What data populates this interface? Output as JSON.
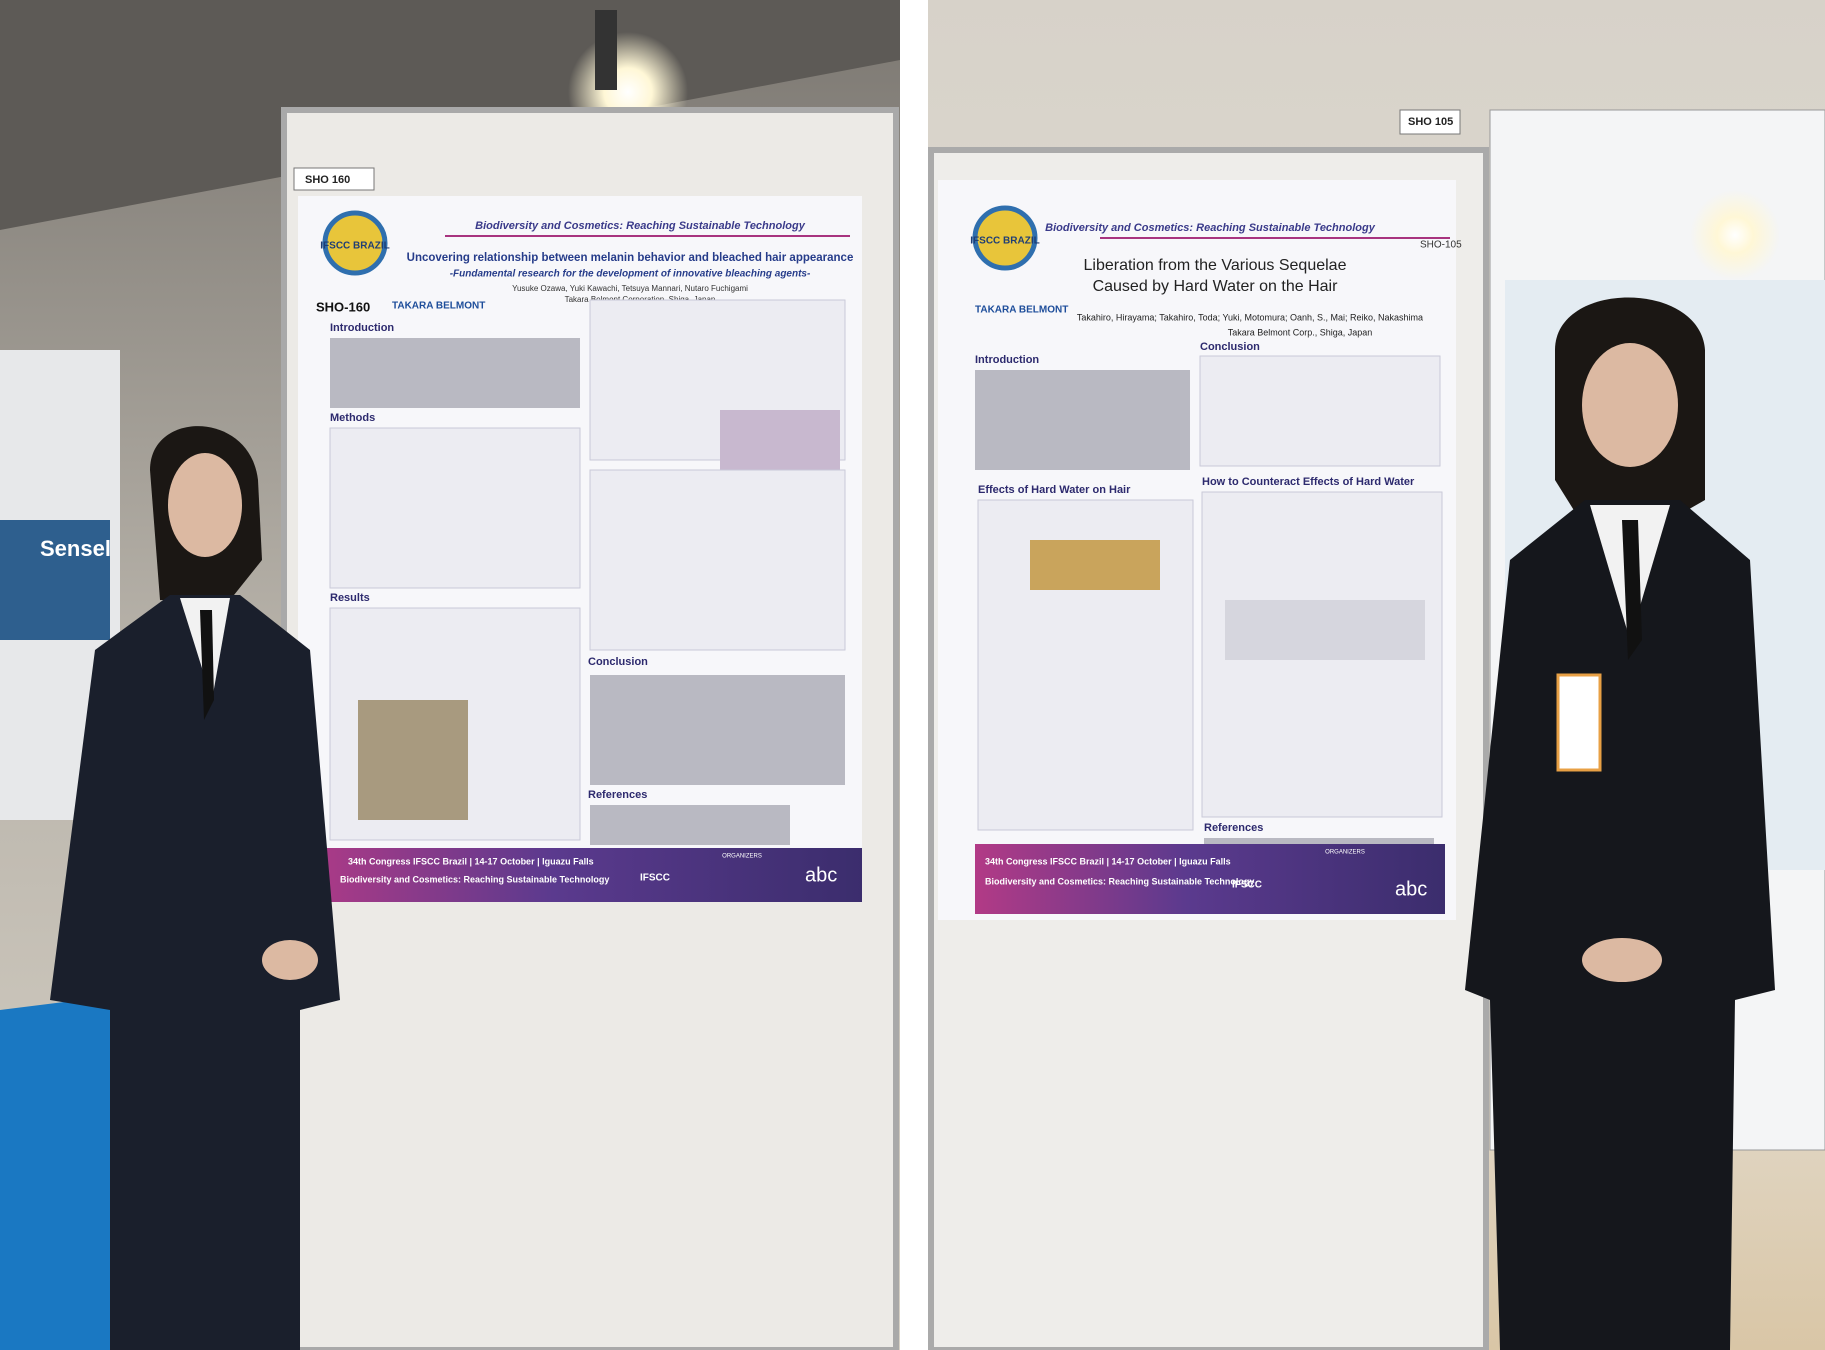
{
  "left_photo": {
    "booth": "SHO 160",
    "poster": {
      "logo": "IFSCC BRAZIL",
      "header": "Biodiversity and Cosmetics: Reaching Sustainable Technology",
      "title": "Uncovering relationship between melanin behavior and bleached hair appearance",
      "subtitle": "-Fundamental research for the development of innovative bleaching agents-",
      "authors": "Yusuke Ozawa, Yuki Kawachi, Tetsuya Mannari, Nutaro Fuchigami",
      "affiliation": "Takara Belmont Corporation, Shiga, Japan",
      "code": "SHO-160",
      "company": "TAKARA BELMONT",
      "sections": [
        "Introduction",
        "Methods",
        "Results",
        "Conclusion",
        "References"
      ],
      "footer_line1": "34th Congress IFSCC Brazil | 14-17 October | Iguazu Falls",
      "footer_line2": "Biodiversity and Cosmetics: Reaching Sustainable Technology",
      "organizers": "ORGANIZERS",
      "org_logo": "IFSCC",
      "sponsor": "abc"
    },
    "sign": "Sensel"
  },
  "right_photo": {
    "booth": "SHO 105",
    "poster": {
      "logo": "IFSCC BRAZIL",
      "header": "Biodiversity and Cosmetics: Reaching Sustainable Technology",
      "title_line1": "Liberation from the Various Sequelae",
      "title_line2": "Caused by Hard Water on the Hair",
      "authors": "Takahiro, Hirayama; Takahiro, Toda; Yuki, Motomura; Oanh, S., Mai; Reiko, Nakashima",
      "affiliation": "Takara Belmont Corp., Shiga, Japan",
      "code": "SHO-105",
      "company": "TAKARA BELMONT",
      "sections": [
        "Introduction",
        "Conclusion",
        "Effects of Hard Water on Hair",
        "How to Counteract Effects of Hard Water",
        "References"
      ],
      "footer_line1": "34th Congress IFSCC Brazil | 14-17 October | Iguazu Falls",
      "footer_line2": "Biodiversity and Cosmetics: Reaching Sustainable Technology",
      "organizers": "ORGANIZERS",
      "org_logo": "IFSCC",
      "sponsor": "abc"
    }
  }
}
